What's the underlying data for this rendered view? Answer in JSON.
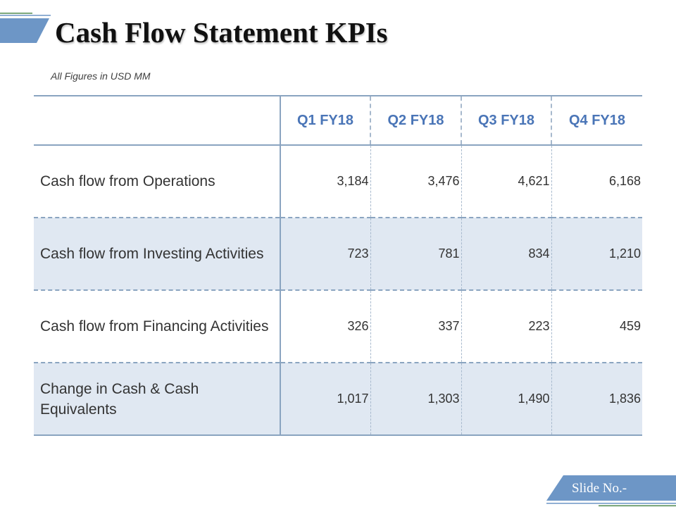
{
  "slide": {
    "title": "Cash Flow Statement KPIs",
    "units_note": "All Figures in USD MM",
    "footer_label": "Slide No.-"
  },
  "colors": {
    "accent": "#6d96c6",
    "header_text": "#4a75b7",
    "row_shading": "#e0e8f2",
    "rule": "#8aa4c0"
  },
  "table": {
    "columns": [
      "Q1 FY18",
      "Q2 FY18",
      "Q3 FY18",
      "Q4 FY18"
    ],
    "rows": [
      {
        "label": "Cash flow from Operations",
        "values": [
          "3,184",
          "3,476",
          "4,621",
          "6,168"
        ],
        "shaded": false
      },
      {
        "label": "Cash flow from Investing Activities",
        "values": [
          "723",
          "781",
          "834",
          "1,210"
        ],
        "shaded": true
      },
      {
        "label": "Cash flow from Financing Activities",
        "values": [
          "326",
          "337",
          "223",
          "459"
        ],
        "shaded": false
      },
      {
        "label": "Change in Cash & Cash Equivalents",
        "values": [
          "1,017",
          "1,303",
          "1,490",
          "1,836"
        ],
        "shaded": true
      }
    ]
  }
}
